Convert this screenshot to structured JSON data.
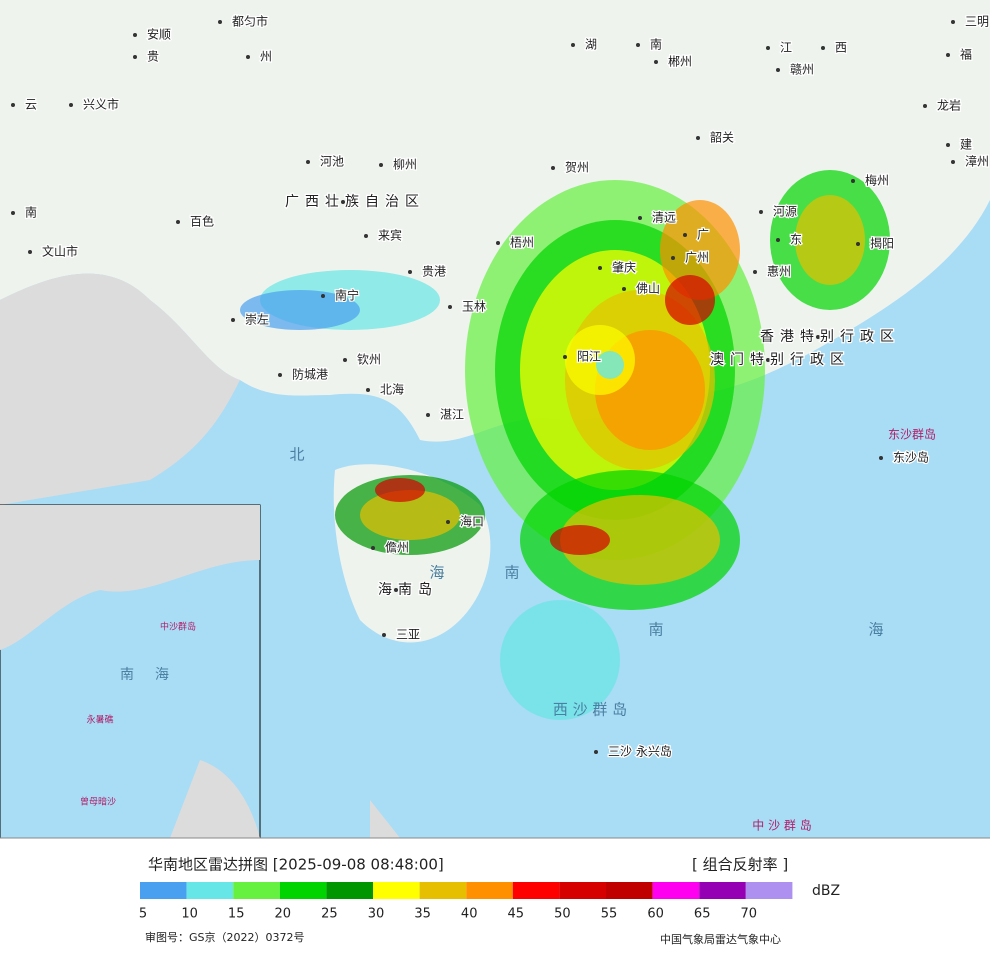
{
  "places": [
    "安顺",
    "都匀市",
    "贵",
    "州",
    "云",
    "兴义市",
    "河池",
    "柳州",
    "广西壮族自治区",
    "百色",
    "南",
    "来宾",
    "文山市",
    "贵港",
    "南宁",
    "玉林",
    "崇左",
    "钦州",
    "防城港",
    "北海",
    "湛江",
    "湖",
    "南",
    "郴州",
    "江",
    "西",
    "赣州",
    "三明",
    "福",
    "龙岩",
    "建",
    "漳州",
    "梅州",
    "韶关",
    "贺州",
    "清远",
    "河源",
    "广",
    "东",
    "梧州",
    "揭阳",
    "肇庆",
    "广州",
    "惠州",
    "佛山",
    "香港特别行政区",
    "澳门特别行政区",
    "阳江",
    "海口",
    "儋州",
    "海南岛",
    "三亚",
    "东沙岛",
    "三沙 永兴岛"
  ],
  "sea_labels": [
    "北",
    "海",
    "南",
    "南",
    "海",
    "西 沙 群 岛",
    "东沙群岛",
    "中 沙 群 岛"
  ],
  "inset_labels": [
    "南",
    "海",
    "中沙群岛",
    "永暑礁",
    "曾母暗沙"
  ],
  "footer": {
    "title": "华南地区雷达拼图 [2025-09-08 08:48:00]",
    "product": "[ 组合反射率 ]",
    "approval": "审图号：GS京（2022）0372号",
    "agency": "中国气象局雷达气象中心"
  },
  "legend": {
    "unit": "dBZ",
    "ticks": [
      5,
      10,
      15,
      20,
      25,
      30,
      35,
      40,
      45,
      50,
      55,
      60,
      65,
      70
    ],
    "colors": [
      "#4aa0f0",
      "#66e6e6",
      "#66f040",
      "#00d400",
      "#009600",
      "#ffff00",
      "#e6c000",
      "#ff9000",
      "#ff0000",
      "#d60000",
      "#c00000",
      "#ff00f0",
      "#9600b4",
      "#ad90f0"
    ]
  }
}
